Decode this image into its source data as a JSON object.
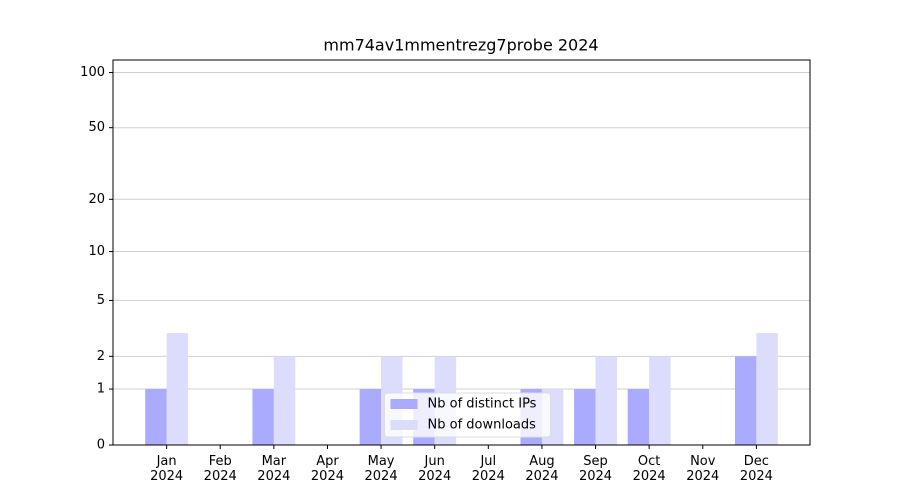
{
  "chart_data": {
    "type": "bar",
    "title": "mm74av1mmentrezg7probe 2024",
    "categories": [
      "Jan\n2024",
      "Feb\n2024",
      "Mar\n2024",
      "Apr\n2024",
      "May\n2024",
      "Jun\n2024",
      "Jul\n2024",
      "Aug\n2024",
      "Sep\n2024",
      "Oct\n2024",
      "Nov\n2024",
      "Dec\n2024"
    ],
    "series": [
      {
        "name": "Nb of distinct IPs",
        "color": "#aaaaff",
        "values": [
          1,
          0,
          1,
          0,
          1,
          1,
          0,
          1,
          1,
          1,
          0,
          2
        ]
      },
      {
        "name": "Nb of downloads",
        "color": "#dcdcfc",
        "values": [
          3,
          0,
          2,
          0,
          2,
          2,
          0,
          1,
          2,
          2,
          0,
          3
        ]
      }
    ],
    "yscale": "log1p",
    "ylim": [
      0,
      117
    ],
    "yticks": [
      0,
      1,
      2,
      5,
      10,
      20,
      50,
      100
    ],
    "grid": true,
    "legend": "lower center"
  }
}
